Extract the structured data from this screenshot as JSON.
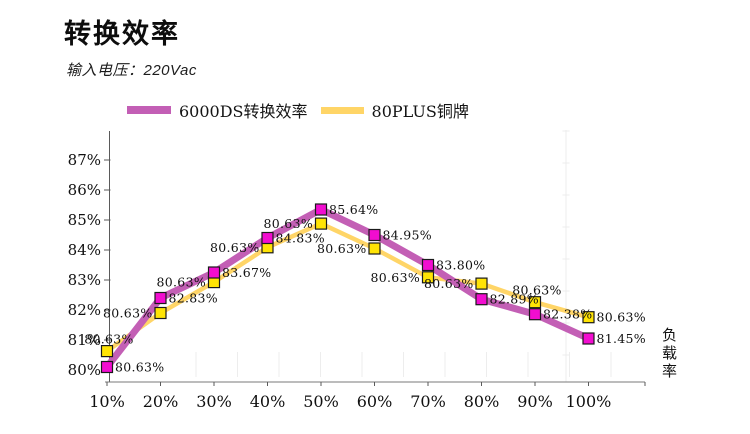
{
  "header": {
    "title": "转换效率",
    "subtitle": "输入电压：220Vac"
  },
  "legend": [
    {
      "label": "6000DS转换效率",
      "color": "#C35FB5"
    },
    {
      "label": "80PLUS铜牌",
      "color": "#FFD567"
    }
  ],
  "axis": {
    "right_label": "负载率"
  },
  "chart_data": {
    "type": "line",
    "title": "转换效率",
    "subtitle": "输入电压：220Vac",
    "xlabel": "负载率",
    "ylabel": "",
    "background": "#FFFFFF",
    "legend_position": "top",
    "grid": false,
    "x_categories": [
      "10%",
      "20%",
      "30%",
      "40%",
      "50%",
      "60%",
      "70%",
      "80%",
      "90%",
      "100%"
    ],
    "x_values": [
      10,
      20,
      30,
      40,
      50,
      60,
      70,
      80,
      90,
      100
    ],
    "y_tick_labels": [
      "87%",
      "86%",
      "85%",
      "84%",
      "83%",
      "82%",
      "81%",
      "80%"
    ],
    "y_tick_values": [
      87,
      86,
      85,
      84,
      83,
      82,
      81,
      80
    ],
    "ylim": [
      80,
      87
    ],
    "series": [
      {
        "name": "6000DS转换效率",
        "line_color": "#C35FB5",
        "marker_color": "#F20DD0",
        "line_width": 7,
        "values": [
          80.63,
          82.83,
          83.67,
          84.83,
          85.64,
          84.95,
          83.8,
          82.89,
          82.38,
          81.45
        ],
        "point_labels": [
          "80.63%",
          "82.83%",
          "83.67%",
          "84.83%",
          "85.64%",
          "84.95%",
          "83.80%",
          "82.89%",
          "82.38%",
          "81.45%"
        ],
        "plotted_values": [
          80.1,
          82.4,
          83.25,
          84.4,
          85.35,
          84.5,
          83.5,
          82.36,
          81.86,
          81.05
        ],
        "label_side": [
          "right",
          "right",
          "right",
          "right",
          "right",
          "right",
          "right",
          "right",
          "right",
          "right"
        ]
      },
      {
        "name": "80PLUS铜牌",
        "line_color": "#FFD567",
        "marker_color": "#FFE405",
        "line_width": 4.5,
        "values": [
          80.63,
          80.63,
          80.63,
          80.63,
          80.63,
          80.63,
          80.63,
          80.63,
          80.63,
          80.63
        ],
        "point_labels": [
          "80.63%",
          "80.63%",
          "80.63%",
          "80.63%",
          "80.63%",
          "80.63%",
          "80.63%",
          "80.63%",
          "80.63%",
          "80.63%"
        ],
        "plotted_values": [
          80.63,
          81.9,
          82.93,
          84.09,
          84.88,
          84.05,
          83.09,
          82.88,
          82.26,
          81.76
        ],
        "label_side": [
          "above",
          "left",
          "left",
          "left",
          "left",
          "left",
          "left",
          "left",
          "above",
          "right"
        ]
      }
    ]
  }
}
